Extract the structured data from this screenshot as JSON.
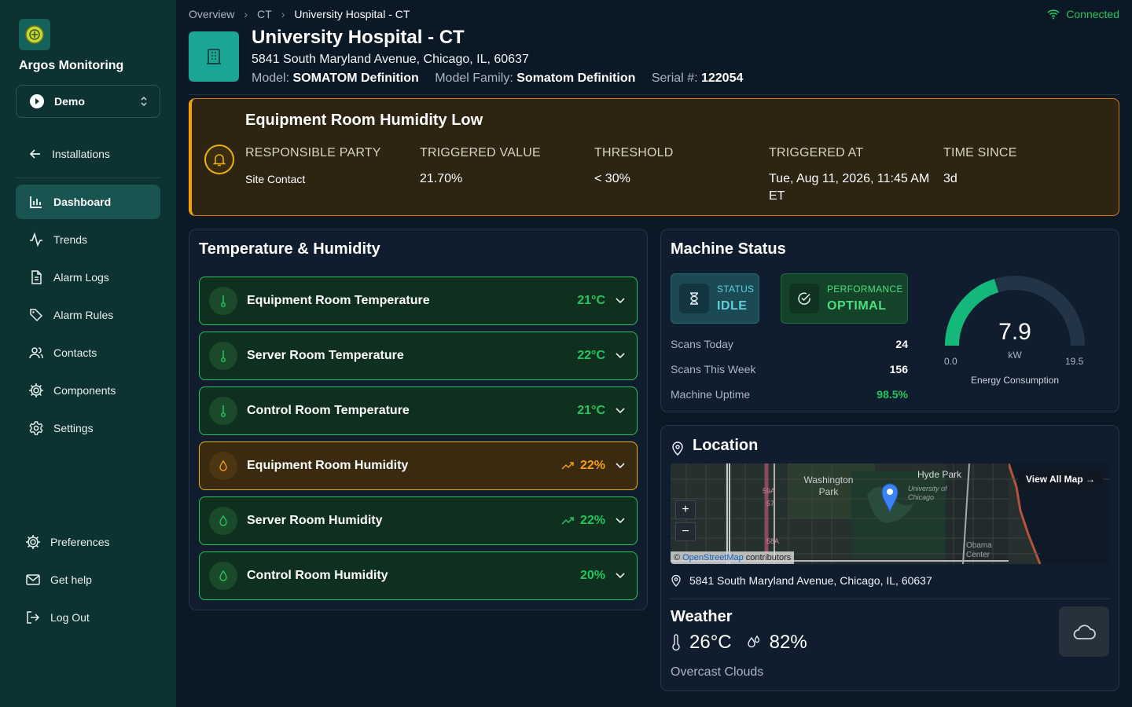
{
  "sidebar": {
    "brand": "Argos Monitoring",
    "org_select": "Demo",
    "back_label": "Installations",
    "nav": [
      {
        "label": "Dashboard",
        "icon": "bar-chart-icon"
      },
      {
        "label": "Trends",
        "icon": "activity-icon"
      },
      {
        "label": "Alarm Logs",
        "icon": "file-text-icon"
      },
      {
        "label": "Alarm Rules",
        "icon": "tag-icon"
      },
      {
        "label": "Contacts",
        "icon": "users-icon"
      },
      {
        "label": "Components",
        "icon": "cog-icon"
      },
      {
        "label": "Settings",
        "icon": "settings-icon"
      }
    ],
    "bottom": [
      {
        "label": "Preferences",
        "icon": "cog-icon"
      },
      {
        "label": "Get help",
        "icon": "mail-icon"
      },
      {
        "label": "Log Out",
        "icon": "logout-icon"
      }
    ]
  },
  "header": {
    "breadcrumb": [
      "Overview",
      "CT",
      "University Hospital - CT"
    ],
    "connection": "Connected",
    "title": "University Hospital - CT",
    "address": "5841 South Maryland Avenue, Chicago, IL, 60637",
    "model_label": "Model:",
    "model": "SOMATOM Definition",
    "family_label": "Model Family:",
    "family": "Somatom Definition",
    "serial_label": "Serial #:",
    "serial": "122054"
  },
  "alert": {
    "title": "Equipment Room Humidity Low",
    "responsible_label": "RESPONSIBLE PARTY",
    "responsible": "Site Contact",
    "triggered_value_label": "TRIGGERED VALUE",
    "triggered_value": "21.70%",
    "threshold_label": "THRESHOLD",
    "threshold": "< 30%",
    "triggered_at_label": "TRIGGERED AT",
    "triggered_at": "Tue, Aug 11, 2026, 11:45 AM ET",
    "since_label": "TIME SINCE",
    "since": "3d",
    "accent": "#f59e0b"
  },
  "temp_humidity": {
    "title": "Temperature & Humidity",
    "sensors": [
      {
        "name": "Equipment Room Temperature",
        "value": "21°C",
        "status": "ok"
      },
      {
        "name": "Server Room Temperature",
        "value": "22°C",
        "status": "ok"
      },
      {
        "name": "Control Room Temperature",
        "value": "21°C",
        "status": "ok"
      },
      {
        "name": "Equipment Room Humidity",
        "value": "22%",
        "status": "warn"
      },
      {
        "name": "Server Room Humidity",
        "value": "22%",
        "status": "ok"
      },
      {
        "name": "Control Room Humidity",
        "value": "20%",
        "status": "ok"
      }
    ]
  },
  "machine": {
    "title": "Machine Status",
    "status_label": "STATUS",
    "status": "IDLE",
    "performance_label": "PERFORMANCE",
    "performance": "OPTIMAL",
    "stats": [
      {
        "label": "Scans Today",
        "value": "24"
      },
      {
        "label": "Scans This Week",
        "value": "156"
      },
      {
        "label": "Machine Uptime",
        "value": "98.5%"
      }
    ],
    "gauge": {
      "value": "7.9",
      "unit": "kW",
      "min": "0.0",
      "max": "19.5",
      "label": "Energy Consumption",
      "fill": 0.405
    }
  },
  "location": {
    "title": "Location",
    "view_map": "View All Map →",
    "map_labels": [
      "Washington Park",
      "Hyde Park",
      "University of Chicago",
      "Obama Center",
      "59A",
      "57",
      "58A"
    ],
    "attribution_link": "OpenStreetMap",
    "attribution_text": "contributors",
    "address": "5841 South Maryland Avenue, Chicago, IL, 60637"
  },
  "weather": {
    "title": "Weather",
    "temperature": "26°C",
    "humidity": "82%",
    "description": "Overcast Clouds"
  },
  "colors": {
    "ok": "#22c55e",
    "warn": "#f59e0b",
    "brand": "#1aa594",
    "sidebar": "#0d3232"
  }
}
